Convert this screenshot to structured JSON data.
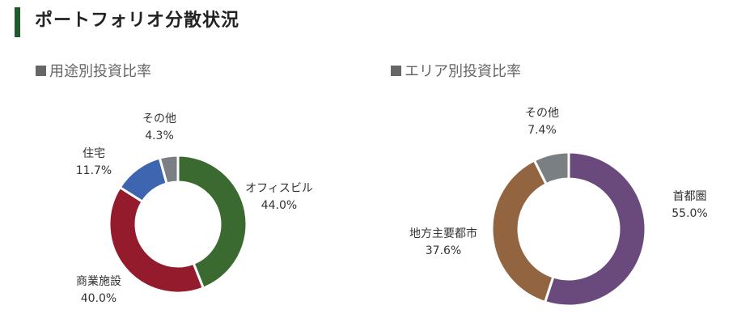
{
  "page_title": "ポートフォリオ分散状況",
  "colors": {
    "title_bar": "#1f5a2a",
    "section_square": "#666666"
  },
  "chart_data": [
    {
      "type": "donut",
      "title": "用途別投資比率",
      "slices": [
        {
          "label": "オフィスビル",
          "value": 44.0,
          "display": "44.0%",
          "color": "#3b6a31"
        },
        {
          "label": "商業施設",
          "value": 40.0,
          "display": "40.0%",
          "color": "#941b2c"
        },
        {
          "label": "住宅",
          "value": 11.7,
          "display": "11.7%",
          "color": "#3e65b0"
        },
        {
          "label": "その他",
          "value": 4.3,
          "display": "4.3%",
          "color": "#7a7f83"
        }
      ]
    },
    {
      "type": "donut",
      "title": "エリア別投資比率",
      "slices": [
        {
          "label": "首都圏",
          "value": 55.0,
          "display": "55.0%",
          "color": "#6a4a7d"
        },
        {
          "label": "地方主要都市",
          "value": 37.6,
          "display": "37.6%",
          "color": "#92643f"
        },
        {
          "label": "その他",
          "value": 7.4,
          "display": "7.4%",
          "color": "#7a7f83"
        }
      ]
    }
  ]
}
